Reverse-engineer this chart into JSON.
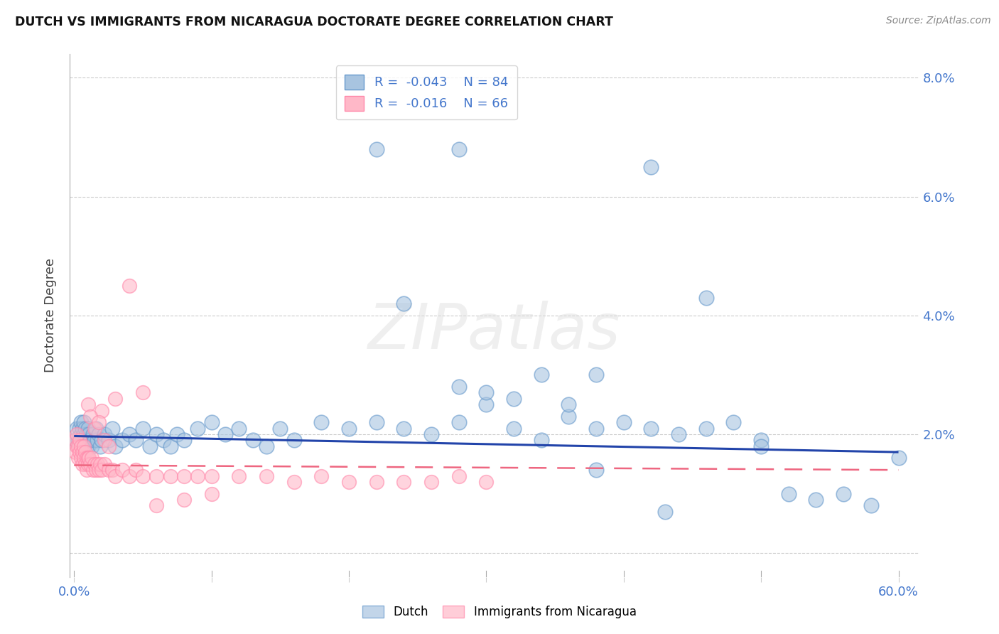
{
  "title": "DUTCH VS IMMIGRANTS FROM NICARAGUA DOCTORATE DEGREE CORRELATION CHART",
  "source": "Source: ZipAtlas.com",
  "ylabel": "Doctorate Degree",
  "xlim": [
    -0.003,
    0.615
  ],
  "ylim": [
    -0.004,
    0.084
  ],
  "yticks": [
    0.0,
    0.02,
    0.04,
    0.06,
    0.08
  ],
  "ytick_labels": [
    "",
    "2.0%",
    "4.0%",
    "6.0%",
    "8.0%"
  ],
  "xtick_positions": [
    0.0,
    0.1,
    0.2,
    0.3,
    0.4,
    0.5,
    0.6
  ],
  "xtick_labels": [
    "0.0%",
    "",
    "",
    "",
    "",
    "",
    "60.0%"
  ],
  "dutch_color": "#A8C4E0",
  "dutch_edge_color": "#6699CC",
  "nicaragua_color": "#FFB8C8",
  "nicaragua_edge_color": "#FF88AA",
  "dutch_trend_color": "#2244AA",
  "nicaragua_trend_color": "#EE6680",
  "dutch_R": -0.043,
  "dutch_N": 84,
  "nicaragua_R": -0.016,
  "nicaragua_N": 66,
  "watermark_text": "ZIPatlas",
  "legend_dutch": "Dutch",
  "legend_nicaragua": "Immigrants from Nicaragua",
  "text_color_blue": "#4477CC",
  "dutch_x": [
    0.001,
    0.002,
    0.003,
    0.004,
    0.005,
    0.005,
    0.006,
    0.006,
    0.007,
    0.007,
    0.008,
    0.008,
    0.009,
    0.009,
    0.01,
    0.01,
    0.011,
    0.012,
    0.013,
    0.014,
    0.015,
    0.016,
    0.017,
    0.018,
    0.019,
    0.02,
    0.022,
    0.025,
    0.028,
    0.03,
    0.035,
    0.04,
    0.045,
    0.05,
    0.055,
    0.06,
    0.065,
    0.07,
    0.075,
    0.08,
    0.09,
    0.1,
    0.11,
    0.12,
    0.13,
    0.14,
    0.15,
    0.16,
    0.18,
    0.2,
    0.22,
    0.24,
    0.26,
    0.28,
    0.3,
    0.32,
    0.34,
    0.36,
    0.38,
    0.4,
    0.42,
    0.44,
    0.46,
    0.48,
    0.5,
    0.52,
    0.54,
    0.56,
    0.58,
    0.6,
    0.28,
    0.3,
    0.32,
    0.34,
    0.36,
    0.38,
    0.28,
    0.42,
    0.46,
    0.5,
    0.22,
    0.24,
    0.38,
    0.43
  ],
  "dutch_y": [
    0.019,
    0.021,
    0.019,
    0.021,
    0.02,
    0.022,
    0.019,
    0.021,
    0.02,
    0.022,
    0.019,
    0.021,
    0.02,
    0.019,
    0.021,
    0.018,
    0.02,
    0.019,
    0.018,
    0.02,
    0.019,
    0.021,
    0.019,
    0.02,
    0.018,
    0.019,
    0.02,
    0.019,
    0.021,
    0.018,
    0.019,
    0.02,
    0.019,
    0.021,
    0.018,
    0.02,
    0.019,
    0.018,
    0.02,
    0.019,
    0.021,
    0.022,
    0.02,
    0.021,
    0.019,
    0.018,
    0.021,
    0.019,
    0.022,
    0.021,
    0.022,
    0.021,
    0.02,
    0.022,
    0.025,
    0.021,
    0.019,
    0.023,
    0.021,
    0.022,
    0.021,
    0.02,
    0.021,
    0.022,
    0.019,
    0.01,
    0.009,
    0.01,
    0.008,
    0.016,
    0.028,
    0.027,
    0.026,
    0.03,
    0.025,
    0.03,
    0.068,
    0.065,
    0.043,
    0.018,
    0.068,
    0.042,
    0.014,
    0.007
  ],
  "nicaragua_x": [
    0.001,
    0.001,
    0.002,
    0.002,
    0.003,
    0.003,
    0.004,
    0.004,
    0.005,
    0.005,
    0.006,
    0.006,
    0.007,
    0.007,
    0.008,
    0.008,
    0.009,
    0.009,
    0.01,
    0.01,
    0.011,
    0.012,
    0.013,
    0.014,
    0.015,
    0.016,
    0.017,
    0.018,
    0.019,
    0.02,
    0.022,
    0.025,
    0.028,
    0.03,
    0.035,
    0.04,
    0.045,
    0.05,
    0.06,
    0.07,
    0.08,
    0.09,
    0.1,
    0.12,
    0.14,
    0.16,
    0.18,
    0.2,
    0.22,
    0.24,
    0.26,
    0.28,
    0.3,
    0.06,
    0.08,
    0.1,
    0.04,
    0.05,
    0.03,
    0.02,
    0.01,
    0.012,
    0.015,
    0.018,
    0.022,
    0.025
  ],
  "nicaragua_y": [
    0.017,
    0.019,
    0.018,
    0.02,
    0.016,
    0.018,
    0.017,
    0.019,
    0.016,
    0.018,
    0.015,
    0.017,
    0.016,
    0.018,
    0.015,
    0.017,
    0.016,
    0.014,
    0.016,
    0.015,
    0.016,
    0.015,
    0.016,
    0.014,
    0.015,
    0.014,
    0.015,
    0.014,
    0.015,
    0.014,
    0.015,
    0.014,
    0.014,
    0.013,
    0.014,
    0.013,
    0.014,
    0.013,
    0.013,
    0.013,
    0.013,
    0.013,
    0.013,
    0.013,
    0.013,
    0.012,
    0.013,
    0.012,
    0.012,
    0.012,
    0.012,
    0.013,
    0.012,
    0.008,
    0.009,
    0.01,
    0.045,
    0.027,
    0.026,
    0.024,
    0.025,
    0.023,
    0.021,
    0.022,
    0.019,
    0.018
  ],
  "dutch_trend_x": [
    0.0,
    0.6
  ],
  "dutch_trend_y": [
    0.0197,
    0.017
  ],
  "nicaragua_trend_x": [
    0.0,
    0.6
  ],
  "nicaragua_trend_y": [
    0.0148,
    0.014
  ]
}
